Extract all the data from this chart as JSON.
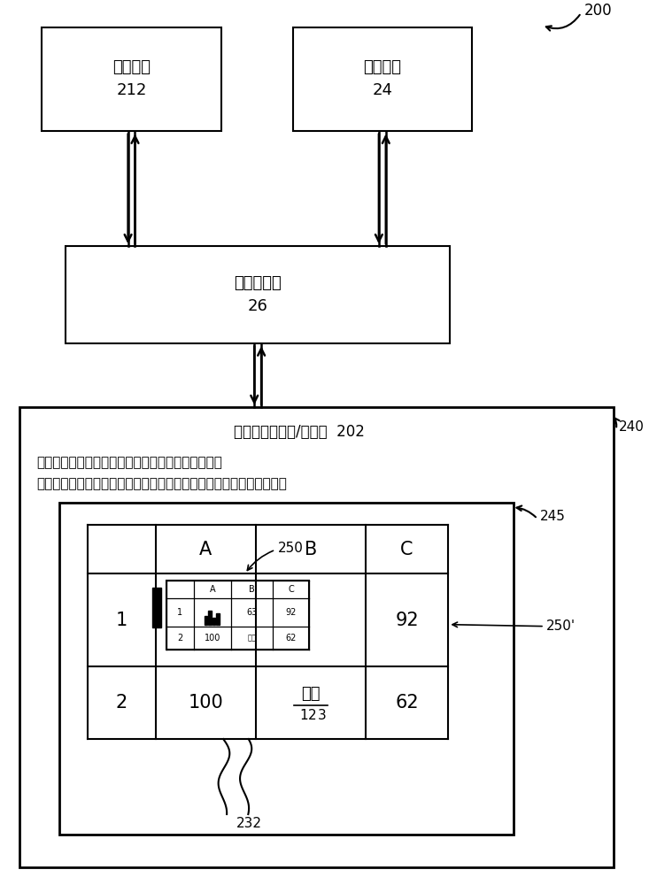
{
  "bg_color": "#ffffff",
  "box1_label": "回调代码",
  "box1_num": "212",
  "box2_label": "应用程序",
  "box2_num": "24",
  "box3_label": "缩放管理器",
  "box3_num": "26",
  "label_200": "200",
  "label_240": "240",
  "label_245": "245",
  "label_250": "250",
  "label_250p": "250'",
  "label_232": "232",
  "label_202": "触摸屏输入设备/显示器  202",
  "text_line1": "用户可通过在对象上进行轻叩来选择要缩放的对象。",
  "text_line2": "对象被缩放至与关于文档中的其他内容的当前查看情况有关的缩放级别",
  "font_size_box": 13,
  "font_size_label": 11,
  "font_size_text": 11
}
